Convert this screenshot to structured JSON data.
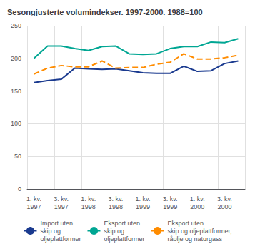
{
  "chart_data": {
    "type": "line",
    "title": "Sesongjusterte volumindekser. 1997-2000. 1988=100",
    "categories": [
      "1. kv.\n1997",
      null,
      "3. kv.\n1997",
      null,
      "1. kv.\n1998",
      null,
      "3. kv.\n1998",
      null,
      "1. kv.\n1999",
      null,
      "3. kv.\n1999",
      null,
      "1. kv.\n2000",
      null,
      "3. kv.\n2000",
      null
    ],
    "series": [
      {
        "name": "Import uten\nskip og\noljeplattformer",
        "color": "#1a3a8f",
        "line_style": "solid",
        "values": [
          163,
          166,
          168,
          185,
          184,
          183,
          184,
          181,
          178,
          177,
          177,
          188,
          180,
          181,
          192,
          196
        ]
      },
      {
        "name": "Eksport uten\nskip og\noljeplattformer",
        "color": "#00a693",
        "line_style": "solid",
        "values": [
          200,
          219,
          219,
          215,
          212,
          218,
          219,
          207,
          206,
          207,
          215,
          218,
          218,
          225,
          224,
          230
        ]
      },
      {
        "name": "Eksport uten\nskip og oljeplattformer,\nråolje og naturgass",
        "color": "#FF8C00",
        "line_style": "dashed",
        "values": [
          176,
          185,
          189,
          187,
          187,
          196,
          185,
          186,
          186,
          191,
          194,
          207,
          199,
          199,
          201,
          205
        ]
      }
    ],
    "ylim": [
      0,
      250
    ],
    "yticks": [
      0,
      50,
      100,
      150,
      200,
      250
    ],
    "grid": true,
    "legend": "bottom"
  }
}
